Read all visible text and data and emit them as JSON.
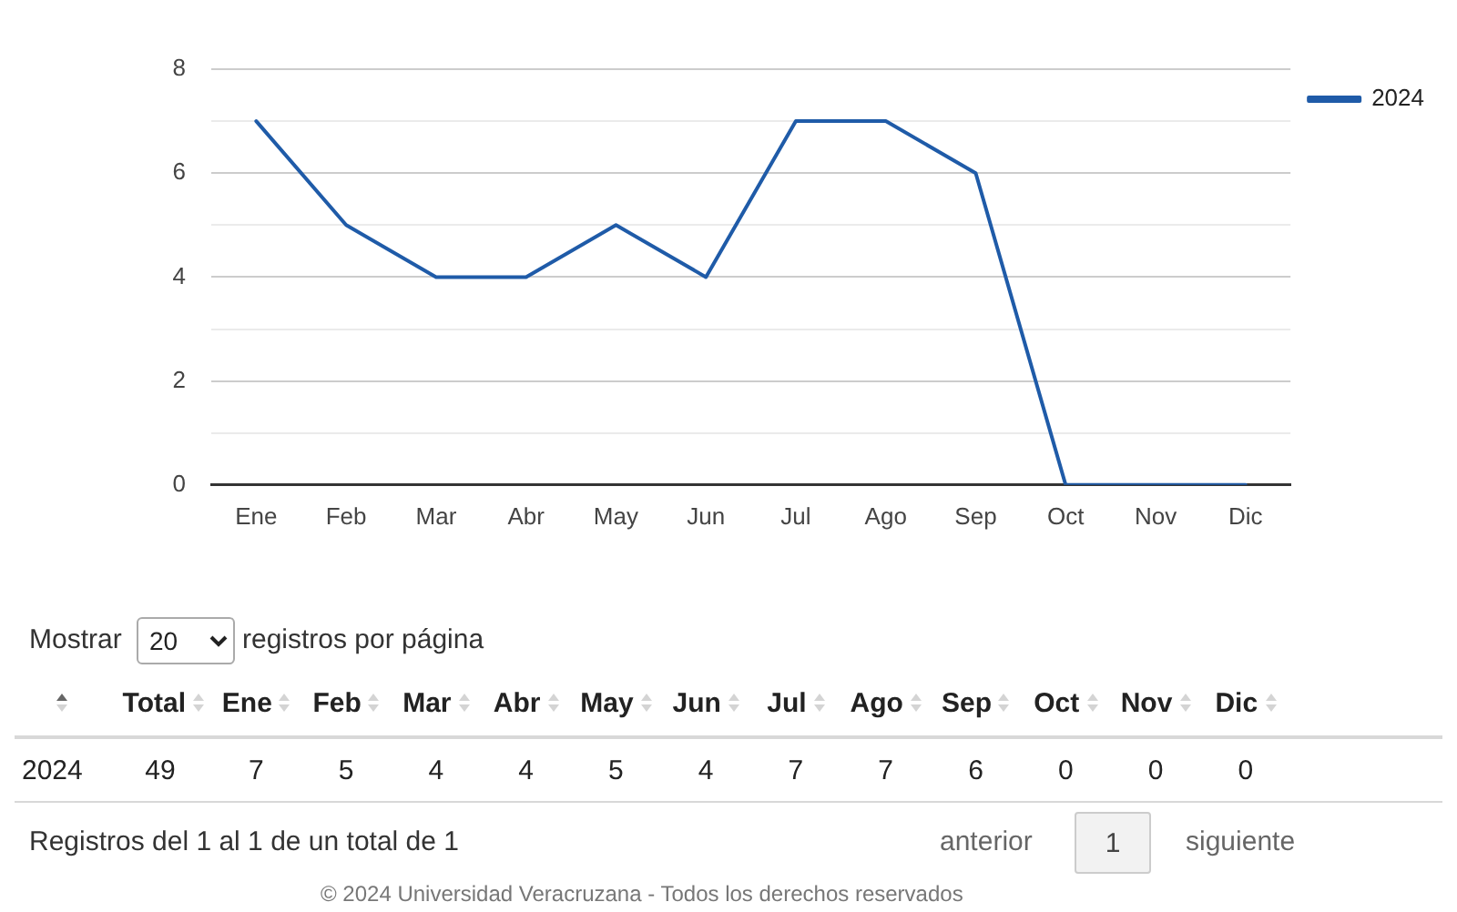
{
  "chart_data": {
    "type": "line",
    "categories": [
      "Ene",
      "Feb",
      "Mar",
      "Abr",
      "May",
      "Jun",
      "Jul",
      "Ago",
      "Sep",
      "Oct",
      "Nov",
      "Dic"
    ],
    "series": [
      {
        "name": "2024",
        "color": "#1f5ba8",
        "values": [
          7,
          5,
          4,
          4,
          5,
          4,
          7,
          7,
          6,
          0,
          0,
          0
        ]
      }
    ],
    "ylim": [
      0,
      8
    ],
    "yticks": [
      0,
      {
        "value": 1,
        "label": null
      },
      2,
      {
        "value": 3,
        "label": null
      },
      4,
      {
        "value": 5,
        "label": null
      },
      6,
      {
        "value": 7,
        "label": null
      },
      8
    ],
    "grid": "y",
    "legend": "top right",
    "data_labels": true,
    "annotations": [
      "Mostrar",
      "20",
      "registros por página",
      "Total",
      "49",
      "Registros del 1 al 1 de un total de 1",
      "anterior",
      "1",
      "siguiente",
      "© 2024 Universidad Veracruzana - Todos los derechos reservados"
    ]
  }
}
